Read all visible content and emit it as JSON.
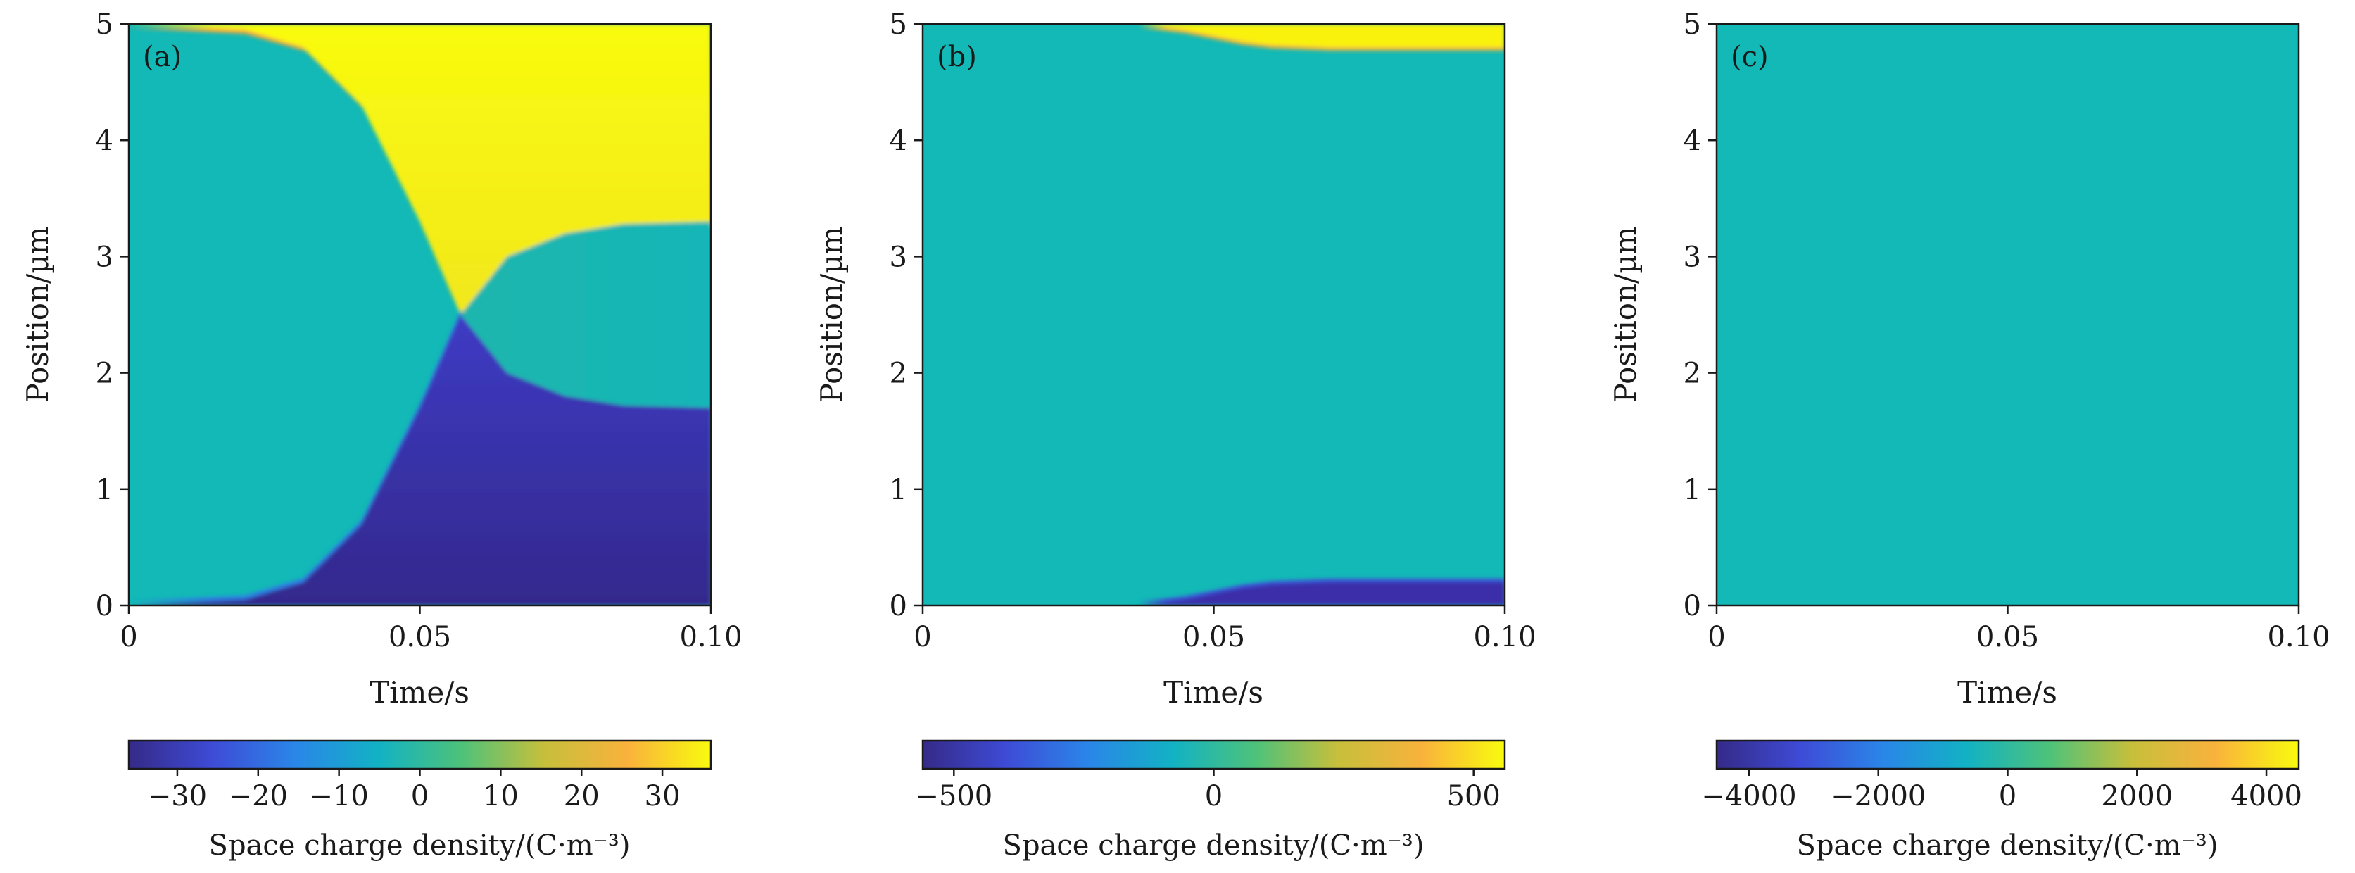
{
  "colors": {
    "colormap": [
      "#352a87",
      "#3e4bd6",
      "#2a86e8",
      "#12b2c4",
      "#4dc27a",
      "#c7bf3b",
      "#f9b23c",
      "#f9fb0e"
    ],
    "neutral_teal": "#12b9b6"
  },
  "chart_data": [
    {
      "type": "heatmap",
      "panel_tag": "(a)",
      "xlabel": "Time/s",
      "ylabel": "Position/µm",
      "xlim": [
        0,
        0.1
      ],
      "ylim": [
        0,
        5
      ],
      "xticks": [
        {
          "value": 0,
          "label": "0"
        },
        {
          "value": 0.05,
          "label": "0.05"
        },
        {
          "value": 0.1,
          "label": "0.10"
        }
      ],
      "yticks": [
        {
          "value": 0,
          "label": "0"
        },
        {
          "value": 1,
          "label": "1"
        },
        {
          "value": 2,
          "label": "2"
        },
        {
          "value": 3,
          "label": "3"
        },
        {
          "value": 4,
          "label": "4"
        },
        {
          "value": 5,
          "label": "5"
        }
      ],
      "colorbar": {
        "label": "Space charge density/(C·m⁻³)",
        "range": [
          -36,
          36
        ],
        "ticks": [
          {
            "value": -30,
            "label": "−30"
          },
          {
            "value": -20,
            "label": "−20"
          },
          {
            "value": -10,
            "label": "−10"
          },
          {
            "value": 0,
            "label": "0"
          },
          {
            "value": 10,
            "label": "10"
          },
          {
            "value": 20,
            "label": "20"
          },
          {
            "value": 30,
            "label": "30"
          }
        ]
      },
      "features": {
        "positive_front": {
          "time": [
            0.0,
            0.02,
            0.03,
            0.04,
            0.05,
            0.057
          ],
          "position": [
            5.0,
            4.95,
            4.8,
            4.3,
            3.3,
            2.5
          ]
        },
        "negative_front": {
          "time": [
            0.0,
            0.02,
            0.03,
            0.04,
            0.05,
            0.057
          ],
          "position": [
            0.0,
            0.05,
            0.2,
            0.7,
            1.7,
            2.5
          ]
        },
        "crossing_point": {
          "time": 0.057,
          "position": 2.5
        },
        "positive_tail": {
          "time": [
            0.057,
            0.065,
            0.075,
            0.085,
            0.1
          ],
          "position": [
            2.5,
            3.0,
            3.2,
            3.28,
            3.3
          ]
        },
        "negative_tail": {
          "time": [
            0.057,
            0.065,
            0.075,
            0.085,
            0.1
          ],
          "position": [
            2.5,
            2.0,
            1.8,
            1.72,
            1.7
          ]
        },
        "max_positive_value": 33,
        "max_negative_value": -33
      }
    },
    {
      "type": "heatmap",
      "panel_tag": "(b)",
      "xlabel": "Time/s",
      "ylabel": "Position/µm",
      "xlim": [
        0,
        0.1
      ],
      "ylim": [
        0,
        5
      ],
      "xticks": [
        {
          "value": 0,
          "label": "0"
        },
        {
          "value": 0.05,
          "label": "0.05"
        },
        {
          "value": 0.1,
          "label": "0.10"
        }
      ],
      "yticks": [
        {
          "value": 0,
          "label": "0"
        },
        {
          "value": 1,
          "label": "1"
        },
        {
          "value": 2,
          "label": "2"
        },
        {
          "value": 3,
          "label": "3"
        },
        {
          "value": 4,
          "label": "4"
        },
        {
          "value": 5,
          "label": "5"
        }
      ],
      "colorbar": {
        "label": "Space charge density/(C·m⁻³)",
        "range": [
          -560,
          560
        ],
        "ticks": [
          {
            "value": -500,
            "label": "−500"
          },
          {
            "value": 0,
            "label": "0"
          },
          {
            "value": 500,
            "label": "500"
          }
        ]
      },
      "features": {
        "positive_layer_top": {
          "time": [
            0.037,
            0.045,
            0.05,
            0.055,
            0.06,
            0.07,
            0.1
          ],
          "thickness": [
            0.0,
            0.05,
            0.1,
            0.15,
            0.18,
            0.2,
            0.2
          ]
        },
        "negative_layer_bottom": {
          "time": [
            0.037,
            0.045,
            0.05,
            0.055,
            0.06,
            0.07,
            0.1
          ],
          "thickness": [
            0.0,
            0.05,
            0.1,
            0.15,
            0.18,
            0.2,
            0.2
          ]
        },
        "max_positive_value": 550,
        "max_negative_value": -550
      }
    },
    {
      "type": "heatmap",
      "panel_tag": "(c)",
      "xlabel": "Time/s",
      "ylabel": "Position/µm",
      "xlim": [
        0,
        0.1
      ],
      "ylim": [
        0,
        5
      ],
      "xticks": [
        {
          "value": 0,
          "label": "0"
        },
        {
          "value": 0.05,
          "label": "0.05"
        },
        {
          "value": 0.1,
          "label": "0.10"
        }
      ],
      "yticks": [
        {
          "value": 0,
          "label": "0"
        },
        {
          "value": 1,
          "label": "1"
        },
        {
          "value": 2,
          "label": "2"
        },
        {
          "value": 3,
          "label": "3"
        },
        {
          "value": 4,
          "label": "4"
        },
        {
          "value": 5,
          "label": "5"
        }
      ],
      "colorbar": {
        "label": "Space charge density/(C·m⁻³)",
        "range": [
          -4500,
          4500
        ],
        "ticks": [
          {
            "value": -4000,
            "label": "−4000"
          },
          {
            "value": -2000,
            "label": "−2000"
          },
          {
            "value": 0,
            "label": "0"
          },
          {
            "value": 2000,
            "label": "2000"
          },
          {
            "value": 4000,
            "label": "4000"
          }
        ]
      },
      "features": {
        "uniform_value": 0
      }
    }
  ]
}
